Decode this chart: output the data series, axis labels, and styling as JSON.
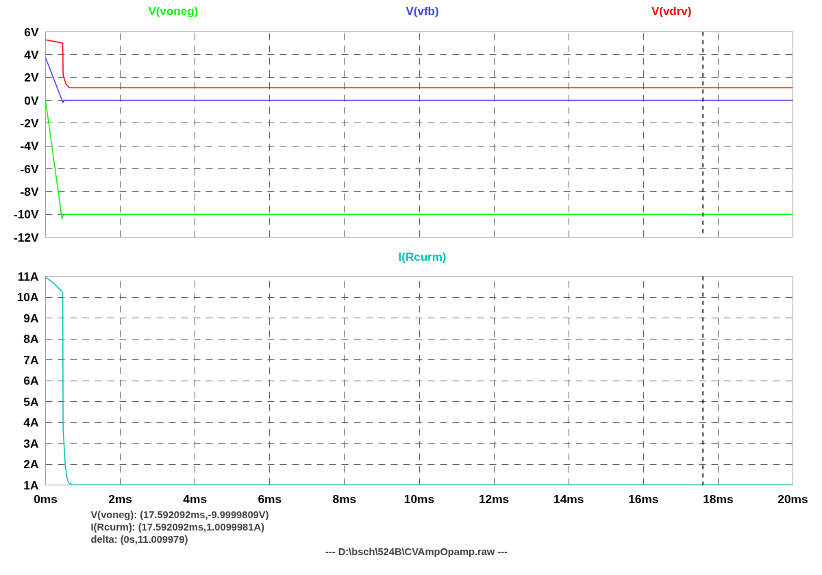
{
  "chart_data": [
    {
      "type": "line",
      "grid": true,
      "tick_labels": "y",
      "line_style": "solid",
      "xlim": [
        0,
        20
      ],
      "xticks": [
        0,
        2,
        4,
        6,
        8,
        10,
        12,
        14,
        16,
        18,
        20
      ],
      "ylim": [
        -12,
        6
      ],
      "yticks": [
        {
          "value": 6,
          "label": "6V"
        },
        {
          "value": 4,
          "label": "4V"
        },
        {
          "value": 2,
          "label": "2V"
        },
        {
          "value": 0,
          "label": "0V"
        },
        {
          "value": -2,
          "label": "-2V"
        },
        {
          "value": -4,
          "label": "-4V"
        },
        {
          "value": -6,
          "label": "-6V"
        },
        {
          "value": -8,
          "label": "-8V"
        },
        {
          "value": -10,
          "label": "-10V"
        },
        {
          "value": -12,
          "label": "-12V"
        }
      ],
      "ref_lines": [
        {
          "axis": "x",
          "value": 17.592092,
          "color": "#000000",
          "line_style": "dashed"
        }
      ],
      "series": [
        {
          "name": "V(voneg)",
          "color": "#00ff00",
          "x": [
            0,
            0.44,
            0.46,
            0.5,
            0.7,
            20
          ],
          "values": [
            0,
            -10.4,
            -10.2,
            -10.0,
            -10.0,
            -10.0
          ]
        },
        {
          "name": "V(vfb)",
          "color": "#4040ff",
          "x": [
            0,
            0.44,
            0.46,
            0.5,
            20
          ],
          "values": [
            3.75,
            0.0,
            -0.2,
            0.0,
            0.0
          ]
        },
        {
          "name": "V(vdrv)",
          "color": "#ff0000",
          "x": [
            0,
            0.4,
            0.46,
            0.47,
            0.55,
            0.64,
            20
          ],
          "values": [
            5.3,
            5.05,
            5.0,
            2.2,
            1.4,
            1.1,
            1.1
          ]
        }
      ]
    },
    {
      "type": "line",
      "grid": true,
      "line_style": "solid",
      "xlim": [
        0,
        20
      ],
      "xticks": [
        {
          "value": 0,
          "label": "0ms"
        },
        {
          "value": 2,
          "label": "2ms"
        },
        {
          "value": 4,
          "label": "4ms"
        },
        {
          "value": 6,
          "label": "6ms"
        },
        {
          "value": 8,
          "label": "8ms"
        },
        {
          "value": 10,
          "label": "10ms"
        },
        {
          "value": 12,
          "label": "12ms"
        },
        {
          "value": 14,
          "label": "14ms"
        },
        {
          "value": 16,
          "label": "16ms"
        },
        {
          "value": 18,
          "label": "18ms"
        },
        {
          "value": 20,
          "label": "20ms"
        }
      ],
      "ylim": [
        1,
        11
      ],
      "yticks": [
        {
          "value": 11,
          "label": "11A"
        },
        {
          "value": 10,
          "label": "10A"
        },
        {
          "value": 9,
          "label": "9A"
        },
        {
          "value": 8,
          "label": "8A"
        },
        {
          "value": 7,
          "label": "7A"
        },
        {
          "value": 6,
          "label": "6A"
        },
        {
          "value": 5,
          "label": "5A"
        },
        {
          "value": 4,
          "label": "4A"
        },
        {
          "value": 3,
          "label": "3A"
        },
        {
          "value": 2,
          "label": "2A"
        },
        {
          "value": 1,
          "label": "1A"
        }
      ],
      "ref_lines": [
        {
          "axis": "x",
          "value": 17.592092,
          "color": "#000000",
          "line_style": "dashed"
        }
      ],
      "annotations": [
        "V(voneg): (17.592092ms,-9.9999809V)",
        "I(Rcurm): (17.592092ms,1.0099981A)",
        "delta: (0s,11.009979)",
        "---  D:\\bsch\\524B\\CVAmpOpamp.raw  ---"
      ],
      "series": [
        {
          "name": "I(Rcurm)",
          "color": "#00c0c0",
          "x": [
            0,
            0.2,
            0.42,
            0.46,
            0.47,
            0.53,
            0.58,
            0.62,
            0.7,
            20
          ],
          "values": [
            10.95,
            10.7,
            10.3,
            10.2,
            3.65,
            1.9,
            1.3,
            1.1,
            1.01,
            1.01
          ]
        }
      ]
    }
  ]
}
